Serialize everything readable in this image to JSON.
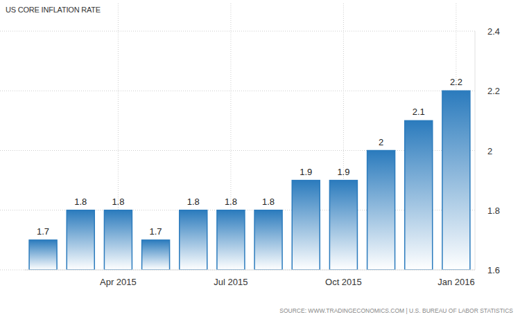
{
  "chart_data": {
    "type": "bar",
    "title": "US CORE INFLATION RATE",
    "categories": [
      null,
      null,
      "Apr 2015",
      null,
      null,
      "Jul 2015",
      null,
      null,
      "Oct 2015",
      null,
      null,
      "Jan 2016"
    ],
    "values": [
      1.7,
      1.8,
      1.8,
      1.7,
      1.8,
      1.8,
      1.8,
      1.9,
      1.9,
      2,
      2.1,
      2.2
    ],
    "color": "#2b7bbd",
    "ylim": [
      1.6,
      2.4
    ],
    "yticks": [
      1.6,
      1.8,
      2,
      2.2,
      2.4
    ],
    "grid": true,
    "data_labels": true,
    "annotations": [
      "SOURCE: WWW.TRADINGECONOMICS.COM | U.S. BUREAU OF LABOR STATISTICS"
    ]
  }
}
